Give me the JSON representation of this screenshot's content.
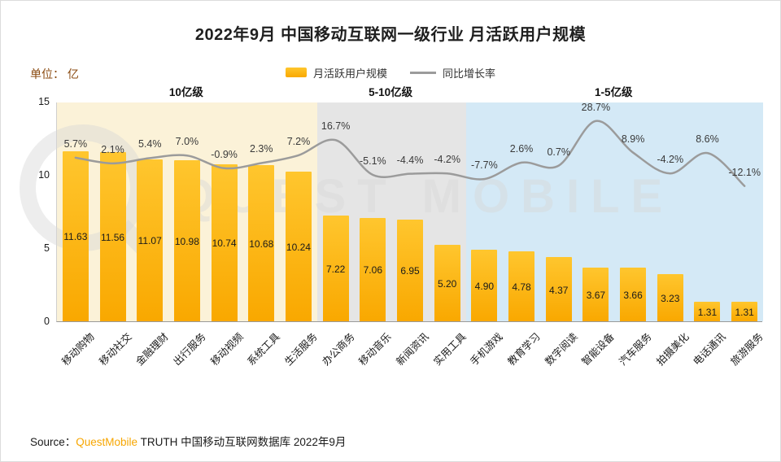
{
  "title": "2022年9月 中国移动互联网一级行业 月活跃用户规模",
  "unit_label": "单位： 亿",
  "legend": {
    "bar_label": "月活跃用户规模",
    "line_label": "同比增长率"
  },
  "sections": [
    {
      "label": "10亿级",
      "count": 7,
      "bg": "#FBF2D8"
    },
    {
      "label": "5-10亿级",
      "count": 4,
      "bg": "#E5E5E5"
    },
    {
      "label": "1-5亿级",
      "count": 8,
      "bg": "#D4E9F6"
    }
  ],
  "y_axis": {
    "ticks": [
      15,
      10,
      5,
      0
    ]
  },
  "chart_data": {
    "type": "bar+line",
    "title": "2022年9月 中国移动互联网一级行业 月活跃用户规模",
    "categories": [
      "移动购物",
      "移动社交",
      "金融理财",
      "出行服务",
      "移动视频",
      "系统工具",
      "生活服务",
      "办公商务",
      "移动音乐",
      "新闻资讯",
      "实用工具",
      "手机游戏",
      "教育学习",
      "数字阅读",
      "智能设备",
      "汽车服务",
      "拍摄美化",
      "电话通讯",
      "旅游服务"
    ],
    "series": [
      {
        "name": "月活跃用户规模",
        "type": "bar",
        "unit": "亿",
        "values": [
          11.63,
          11.56,
          11.07,
          10.98,
          10.74,
          10.68,
          10.24,
          7.22,
          7.06,
          6.95,
          5.2,
          4.9,
          4.78,
          4.37,
          3.67,
          3.66,
          3.23,
          1.31,
          1.31
        ]
      },
      {
        "name": "同比增长率",
        "type": "line",
        "unit": "%",
        "values": [
          5.7,
          2.1,
          5.4,
          7.0,
          -0.9,
          2.3,
          7.2,
          16.7,
          -5.1,
          -4.4,
          -4.2,
          -7.7,
          2.6,
          0.7,
          28.7,
          8.9,
          -4.2,
          8.6,
          -12.1
        ]
      }
    ],
    "ylim": [
      0,
      15
    ],
    "legend_position": "top-center",
    "grid": false
  },
  "source": {
    "prefix": "Source：",
    "brand": "QuestMobile",
    "rest": " TRUTH 中国移动互联网数据库 2022年9月"
  },
  "watermark": "QUEST MOBILE",
  "colors": {
    "bar_top": "#FFC62E",
    "bar_bottom": "#F9A800",
    "line": "#9B9B9B",
    "brand": "#F7A600",
    "unit_text": "#8A4A10",
    "watermark": "rgba(214,214,214,0.45)"
  }
}
